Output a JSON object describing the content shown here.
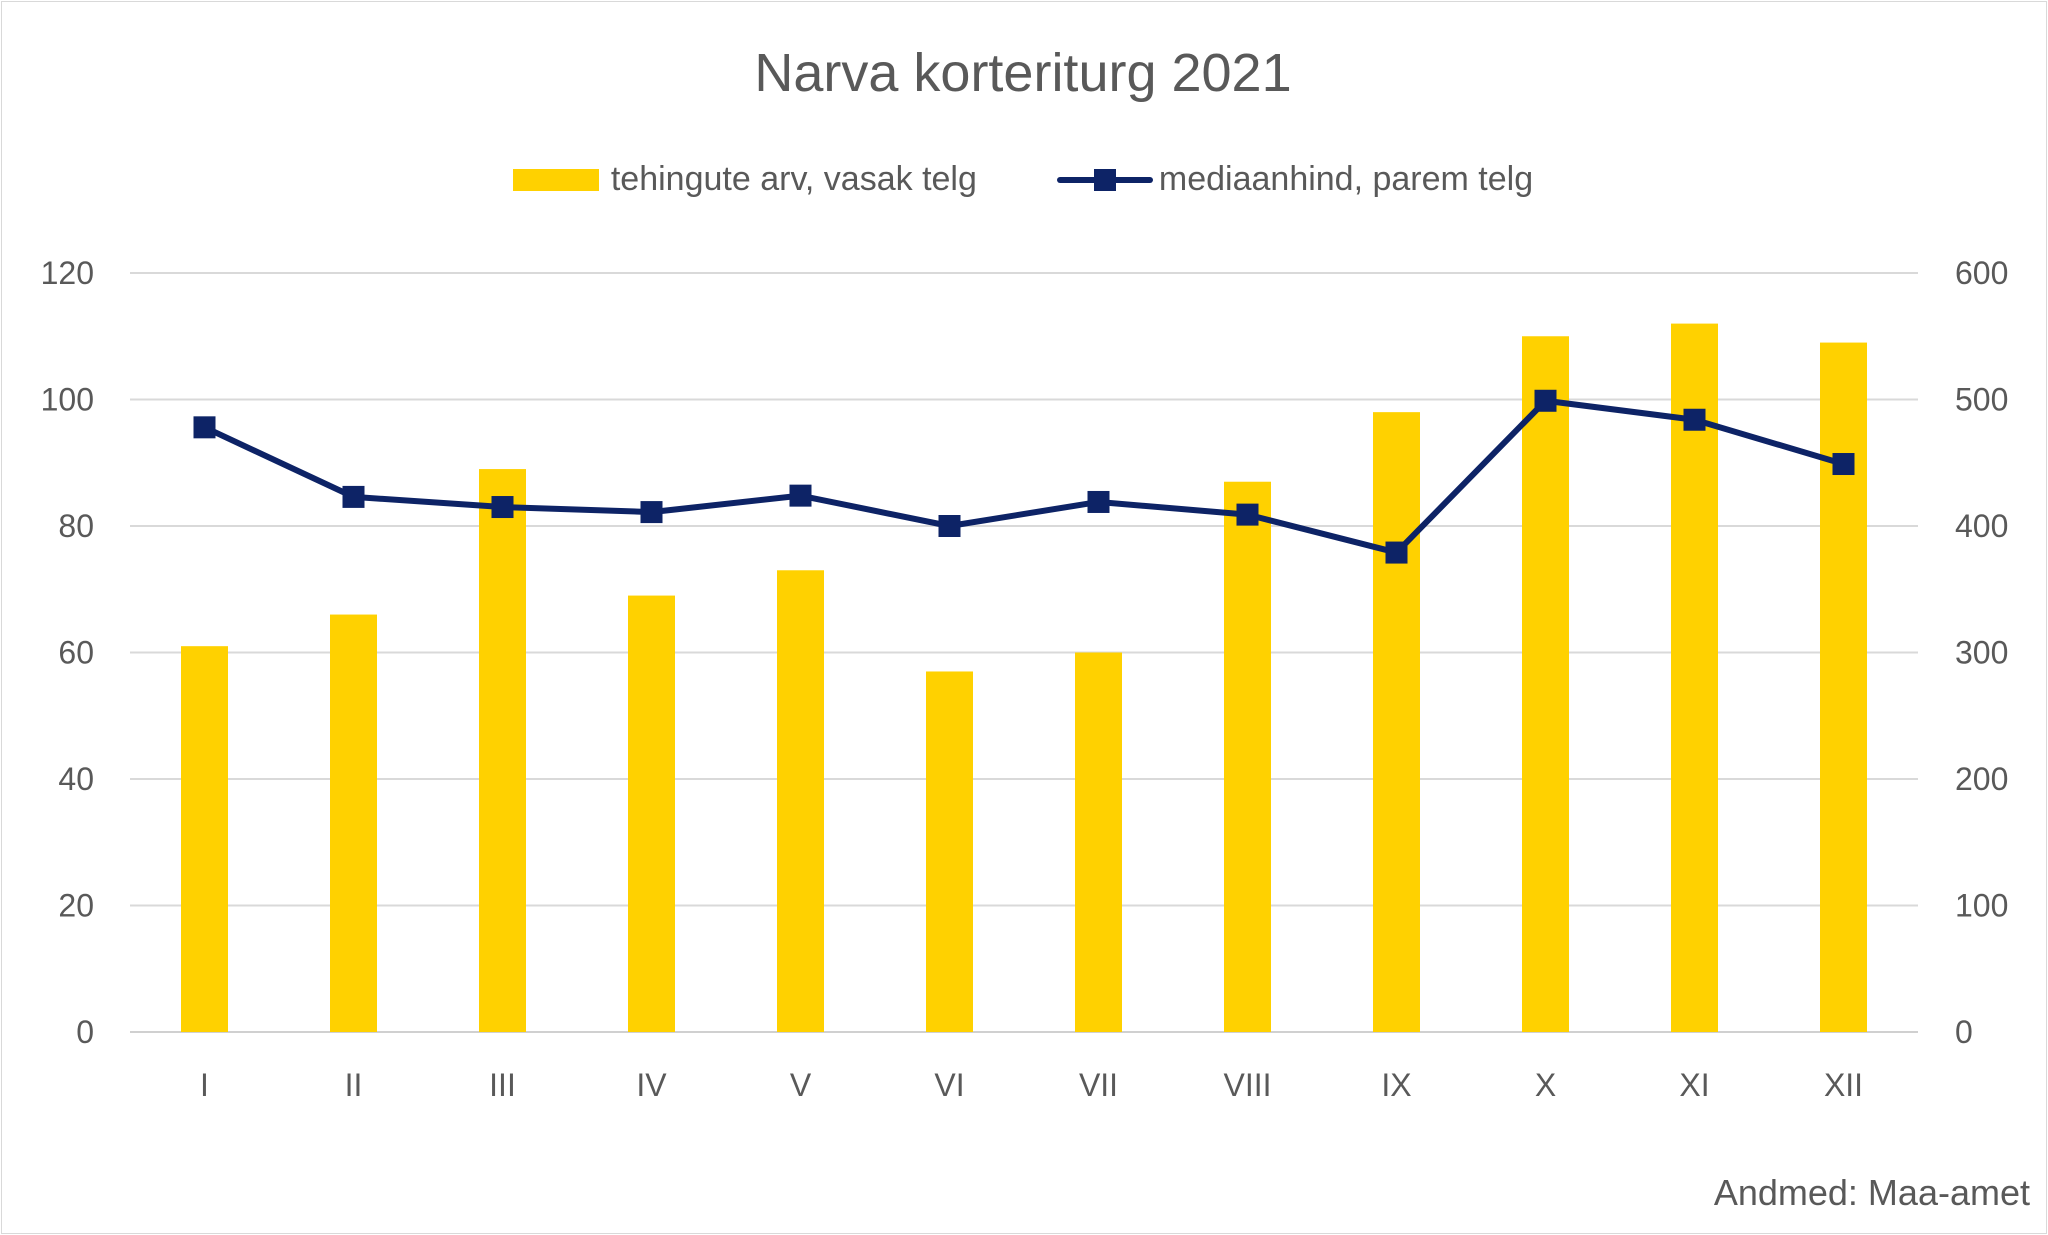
{
  "chart_data": {
    "type": "bar",
    "title": "Narva korteriturg 2021",
    "categories": [
      "I",
      "II",
      "III",
      "IV",
      "V",
      "VI",
      "VII",
      "VIII",
      "IX",
      "X",
      "XI",
      "XII"
    ],
    "series": [
      {
        "name": "tehingute arv, vasak telg",
        "type": "bar",
        "axis": "left",
        "color": "#FFD100",
        "values": [
          61,
          66,
          89,
          69,
          73,
          57,
          60,
          87,
          98,
          110,
          112,
          109
        ]
      },
      {
        "name": "mediaanhind, parem telg",
        "type": "line",
        "axis": "right",
        "marker": "square",
        "color": "#0D2366",
        "values": [
          478,
          423,
          415,
          411,
          424,
          400,
          419,
          409,
          379,
          499,
          484,
          449
        ]
      }
    ],
    "y_left": {
      "min": 0,
      "max": 120,
      "step": 20,
      "ticks": [
        "0",
        "20",
        "40",
        "60",
        "80",
        "100",
        "120"
      ]
    },
    "y_right": {
      "min": 0,
      "max": 600,
      "step": 100,
      "ticks": [
        "0",
        "100",
        "200",
        "300",
        "400",
        "500",
        "600"
      ]
    },
    "grid": true,
    "legend_position": "top"
  },
  "source_note": "Andmed: Maa-amet"
}
